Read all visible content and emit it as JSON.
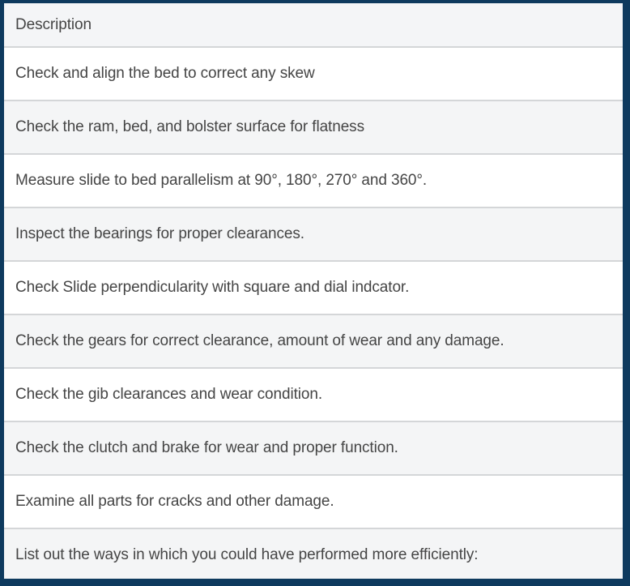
{
  "colors": {
    "frame_navy": "#0e3a5e",
    "header_bg": "#f4f5f7",
    "stripe_bg": "#f4f5f6",
    "row_white": "#ffffff",
    "separator": "#d4d6d8",
    "text_color": "#454545"
  },
  "table": {
    "header": {
      "label": "Description"
    },
    "rows": [
      {
        "text": "Check and align the bed to correct any skew"
      },
      {
        "text": "Check the ram, bed, and bolster surface for flatness"
      },
      {
        "text": "Measure slide to bed parallelism at 90°, 180°, 270° and 360°."
      },
      {
        "text": "Inspect the bearings for proper clearances."
      },
      {
        "text": "Check Slide perpendicularity with square and dial indcator."
      },
      {
        "text": "Check the gears for correct clearance, amount of wear and any damage."
      },
      {
        "text": "Check the gib clearances and wear condition."
      },
      {
        "text": "Check the clutch and brake for wear and proper function."
      },
      {
        "text": "Examine all parts for cracks and other damage."
      },
      {
        "text": "List out the ways in which you could have performed more efficiently:"
      }
    ]
  }
}
